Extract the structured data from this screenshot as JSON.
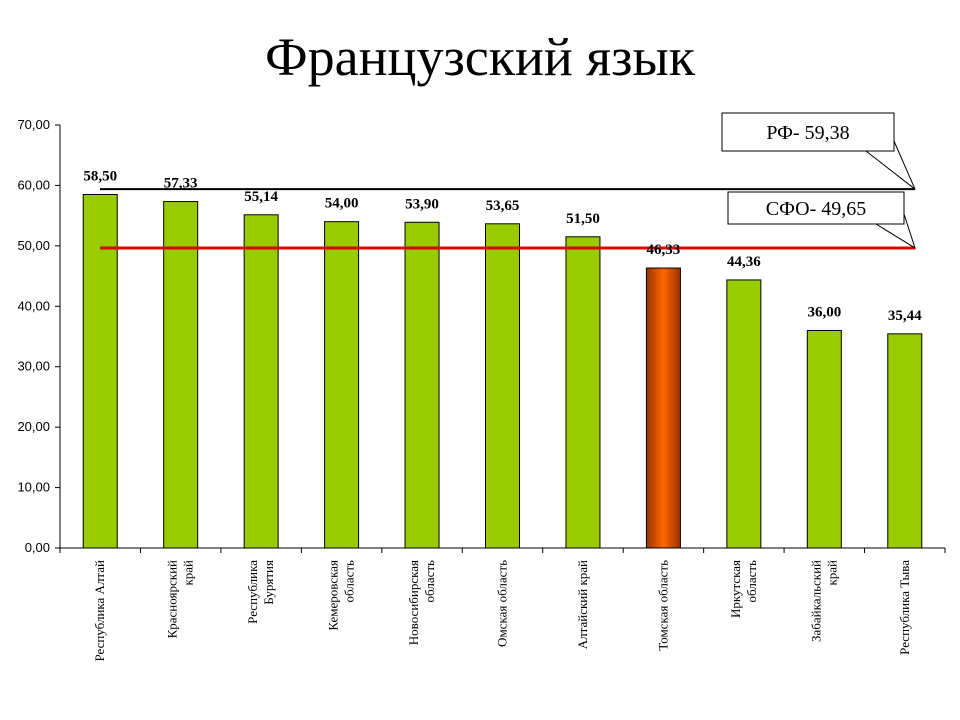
{
  "title": "Французский язык",
  "chart_data": {
    "type": "bar",
    "title": "Французский язык",
    "ylim": [
      0,
      70
    ],
    "yticks": [
      "0,00",
      "10,00",
      "20,00",
      "30,00",
      "40,00",
      "50,00",
      "60,00",
      "70,00"
    ],
    "grid": false,
    "categories": [
      [
        "Республика Алтай"
      ],
      [
        "Красноярский",
        "край"
      ],
      [
        "Республика",
        "Бурятия"
      ],
      [
        "Кемеровская",
        "область"
      ],
      [
        "Новосибирская",
        "область"
      ],
      [
        "Омская область"
      ],
      [
        "Алтайский край"
      ],
      [
        "Томская область"
      ],
      [
        "Иркутская",
        "область"
      ],
      [
        "Забайкальский",
        "край"
      ],
      [
        "Республика Тыва"
      ]
    ],
    "values": [
      58.5,
      57.33,
      55.14,
      54.0,
      53.9,
      53.65,
      51.5,
      46.33,
      44.36,
      36.0,
      35.44
    ],
    "value_labels": [
      "58,50",
      "57,33",
      "55,14",
      "54,00",
      "53,90",
      "53,65",
      "51,50",
      "46,33",
      "44,36",
      "36,00",
      "35,44"
    ],
    "highlight_index": 7,
    "colors": {
      "bar": "#99cc00",
      "bar_stroke": "#000000",
      "highlight_bar": "#ff6600",
      "rf_line": "#000000",
      "sfo_line": "#dd0000"
    },
    "reference_lines": [
      {
        "value": 59.38,
        "label": "РФ- 59,38",
        "color": "#000000"
      },
      {
        "value": 49.65,
        "label": "СФО- 49,65",
        "color": "#dd0000"
      }
    ]
  }
}
